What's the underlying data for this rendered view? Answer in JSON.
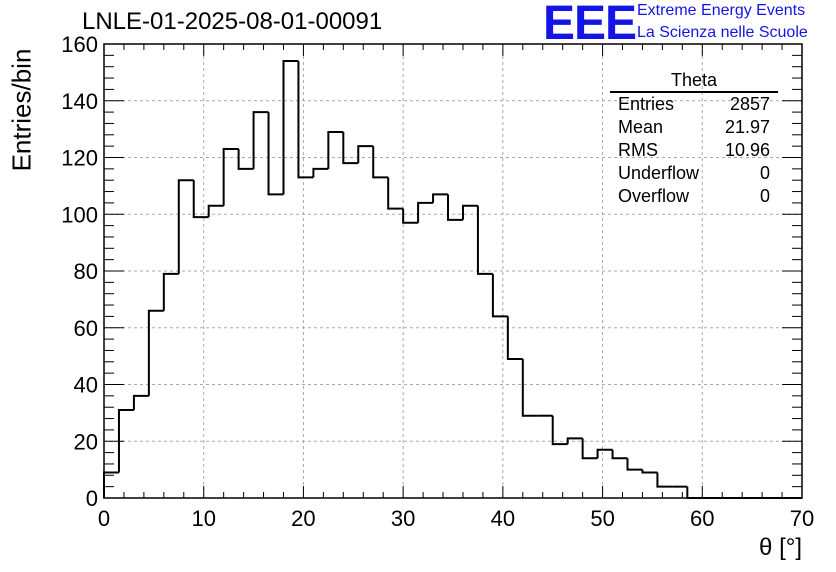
{
  "chart_data": {
    "type": "histogram",
    "title": "LNLE-01-2025-08-01-00091",
    "xlabel": "θ [°]",
    "ylabel": "Entries/bin",
    "xlim": [
      0,
      70
    ],
    "ylim": [
      0,
      160
    ],
    "bin_width": 1.5,
    "grid": true,
    "x_ticks": [
      "0",
      "10",
      "20",
      "30",
      "40",
      "50",
      "60",
      "70"
    ],
    "y_ticks": [
      "0",
      "20",
      "40",
      "60",
      "80",
      "100",
      "120",
      "140",
      "160"
    ],
    "bin_edges_start": 0,
    "values": [
      9,
      31,
      36,
      66,
      79,
      112,
      99,
      103,
      123,
      116,
      136,
      107,
      154,
      113,
      116,
      129,
      118,
      124,
      113,
      102,
      97,
      104,
      107,
      98,
      103,
      79,
      64,
      49,
      29,
      29,
      19,
      21,
      14,
      17,
      14,
      10,
      9,
      4,
      4,
      0,
      0,
      0,
      0,
      0,
      0,
      0,
      0
    ],
    "line_color": "#000000"
  },
  "stats_box": {
    "title": "Theta",
    "rows": [
      {
        "label": "Entries",
        "value": "2857"
      },
      {
        "label": "Mean",
        "value": "21.97"
      },
      {
        "label": "RMS",
        "value": "10.96"
      },
      {
        "label": "Underflow",
        "value": "0"
      },
      {
        "label": "Overflow",
        "value": "0"
      }
    ]
  },
  "logo": {
    "mark": "EEE",
    "line1": "Extreme Energy Events",
    "line2": "La Scienza nelle Scuole",
    "color": "#1414e6"
  }
}
